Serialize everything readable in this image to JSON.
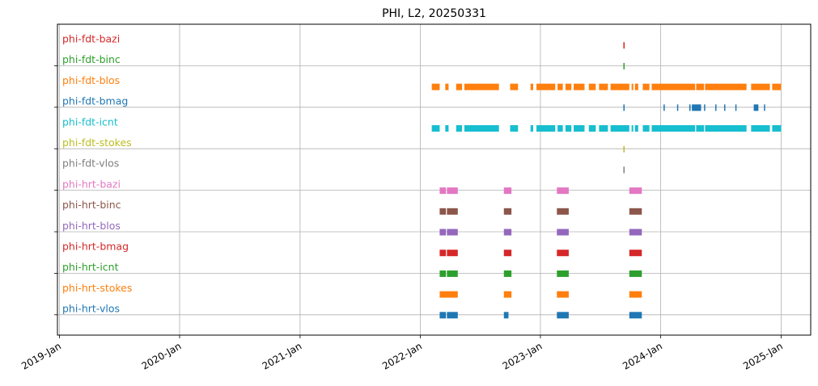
{
  "chart_data": {
    "type": "timeline",
    "title": "PHI, L2, 20250331",
    "x_axis": {
      "scale": "date",
      "range": [
        "2018-12-26",
        "2025-04-01"
      ],
      "ticks": [
        "2019-01-01",
        "2020-01-01",
        "2021-01-01",
        "2022-01-01",
        "2023-01-01",
        "2024-01-01",
        "2025-01-01"
      ],
      "tick_labels": [
        "2019-Jan",
        "2020-Jan",
        "2021-Jan",
        "2022-Jan",
        "2023-Jan",
        "2024-Jan",
        "2025-Jan"
      ],
      "grid": true
    },
    "y_axis": {
      "grid": true,
      "tick_labels": []
    },
    "series": [
      {
        "name": "phi-fdt-bazi",
        "color": "#d62728",
        "intervals": [
          [
            "2023-09-10",
            "2023-09-12"
          ]
        ]
      },
      {
        "name": "phi-fdt-binc",
        "color": "#2ca02c",
        "intervals": [
          [
            "2023-09-10",
            "2023-09-12"
          ]
        ]
      },
      {
        "name": "phi-fdt-blos",
        "color": "#ff7f0e",
        "intervals": [
          [
            "2022-02-05",
            "2022-03-01"
          ],
          [
            "2022-03-18",
            "2022-03-28"
          ],
          [
            "2022-04-20",
            "2022-05-08"
          ],
          [
            "2022-05-15",
            "2022-08-28"
          ],
          [
            "2022-10-01",
            "2022-10-25"
          ],
          [
            "2022-12-02",
            "2022-12-10"
          ],
          [
            "2022-12-20",
            "2023-02-15"
          ],
          [
            "2023-02-22",
            "2023-03-10"
          ],
          [
            "2023-03-18",
            "2023-04-05"
          ],
          [
            "2023-04-12",
            "2023-05-15"
          ],
          [
            "2023-05-28",
            "2023-06-18"
          ],
          [
            "2023-06-28",
            "2023-07-25"
          ],
          [
            "2023-08-02",
            "2023-09-28"
          ],
          [
            "2023-10-05",
            "2023-10-10"
          ],
          [
            "2023-10-15",
            "2023-10-25"
          ],
          [
            "2023-11-08",
            "2023-11-28"
          ],
          [
            "2023-12-05",
            "2024-04-15"
          ],
          [
            "2024-04-18",
            "2024-05-12"
          ],
          [
            "2024-05-15",
            "2024-09-18"
          ],
          [
            "2024-10-02",
            "2024-11-28"
          ],
          [
            "2024-12-05",
            "2025-01-01"
          ]
        ]
      },
      {
        "name": "phi-fdt-bmag",
        "color": "#1f77b4",
        "intervals": [
          [
            "2023-09-10",
            "2023-09-12"
          ],
          [
            "2024-01-10",
            "2024-01-13"
          ],
          [
            "2024-02-20",
            "2024-02-22"
          ],
          [
            "2024-03-28",
            "2024-04-01"
          ],
          [
            "2024-04-05",
            "2024-05-03"
          ],
          [
            "2024-05-12",
            "2024-05-14"
          ],
          [
            "2024-06-15",
            "2024-06-17"
          ],
          [
            "2024-07-12",
            "2024-07-14"
          ],
          [
            "2024-08-15",
            "2024-08-17"
          ],
          [
            "2024-10-10",
            "2024-10-24"
          ],
          [
            "2024-11-10",
            "2024-11-12"
          ]
        ]
      },
      {
        "name": "phi-fdt-icnt",
        "color": "#17becf",
        "intervals": [
          [
            "2022-02-05",
            "2022-03-01"
          ],
          [
            "2022-03-18",
            "2022-03-28"
          ],
          [
            "2022-04-20",
            "2022-05-08"
          ],
          [
            "2022-05-15",
            "2022-08-28"
          ],
          [
            "2022-10-01",
            "2022-10-25"
          ],
          [
            "2022-12-02",
            "2022-12-10"
          ],
          [
            "2022-12-20",
            "2023-02-15"
          ],
          [
            "2023-02-22",
            "2023-03-10"
          ],
          [
            "2023-03-18",
            "2023-04-05"
          ],
          [
            "2023-04-12",
            "2023-05-15"
          ],
          [
            "2023-05-28",
            "2023-06-18"
          ],
          [
            "2023-06-28",
            "2023-07-25"
          ],
          [
            "2023-08-02",
            "2023-09-28"
          ],
          [
            "2023-10-05",
            "2023-10-10"
          ],
          [
            "2023-10-15",
            "2023-10-25"
          ],
          [
            "2023-11-08",
            "2023-11-28"
          ],
          [
            "2023-12-05",
            "2024-04-15"
          ],
          [
            "2024-04-18",
            "2024-05-12"
          ],
          [
            "2024-05-15",
            "2024-09-18"
          ],
          [
            "2024-10-02",
            "2024-11-28"
          ],
          [
            "2024-12-05",
            "2025-01-01"
          ]
        ]
      },
      {
        "name": "phi-fdt-stokes",
        "color": "#bcbd22",
        "intervals": [
          [
            "2023-09-10",
            "2023-09-12"
          ]
        ]
      },
      {
        "name": "phi-fdt-vlos",
        "color": "#7f7f7f",
        "intervals": [
          [
            "2023-09-10",
            "2023-09-12"
          ]
        ]
      },
      {
        "name": "phi-hrt-bazi",
        "color": "#e377c2",
        "intervals": [
          [
            "2022-03-01",
            "2022-03-20"
          ],
          [
            "2022-03-23",
            "2022-04-25"
          ],
          [
            "2022-09-12",
            "2022-10-05"
          ],
          [
            "2023-02-20",
            "2023-03-28"
          ],
          [
            "2023-09-28",
            "2023-11-05"
          ]
        ]
      },
      {
        "name": "phi-hrt-binc",
        "color": "#8c564b",
        "intervals": [
          [
            "2022-03-01",
            "2022-03-20"
          ],
          [
            "2022-03-23",
            "2022-04-25"
          ],
          [
            "2022-09-12",
            "2022-10-05"
          ],
          [
            "2023-02-20",
            "2023-03-28"
          ],
          [
            "2023-09-28",
            "2023-11-05"
          ]
        ]
      },
      {
        "name": "phi-hrt-blos",
        "color": "#9467bd",
        "intervals": [
          [
            "2022-03-01",
            "2022-03-20"
          ],
          [
            "2022-03-23",
            "2022-04-25"
          ],
          [
            "2022-09-12",
            "2022-10-05"
          ],
          [
            "2023-02-20",
            "2023-03-28"
          ],
          [
            "2023-09-28",
            "2023-11-05"
          ]
        ]
      },
      {
        "name": "phi-hrt-bmag",
        "color": "#d62728",
        "intervals": [
          [
            "2022-03-01",
            "2022-03-20"
          ],
          [
            "2022-03-23",
            "2022-04-25"
          ],
          [
            "2022-09-12",
            "2022-10-05"
          ],
          [
            "2023-02-20",
            "2023-03-28"
          ],
          [
            "2023-09-28",
            "2023-11-05"
          ]
        ]
      },
      {
        "name": "phi-hrt-icnt",
        "color": "#2ca02c",
        "intervals": [
          [
            "2022-03-01",
            "2022-03-20"
          ],
          [
            "2022-03-23",
            "2022-04-25"
          ],
          [
            "2022-09-12",
            "2022-10-05"
          ],
          [
            "2023-02-20",
            "2023-03-28"
          ],
          [
            "2023-09-28",
            "2023-11-05"
          ]
        ]
      },
      {
        "name": "phi-hrt-stokes",
        "color": "#ff7f0e",
        "intervals": [
          [
            "2022-03-01",
            "2022-04-25"
          ],
          [
            "2022-09-12",
            "2022-10-05"
          ],
          [
            "2023-02-20",
            "2023-03-28"
          ],
          [
            "2023-09-28",
            "2023-11-05"
          ]
        ]
      },
      {
        "name": "phi-hrt-vlos",
        "color": "#1f77b4",
        "intervals": [
          [
            "2022-03-01",
            "2022-03-20"
          ],
          [
            "2022-03-23",
            "2022-04-25"
          ],
          [
            "2022-09-12",
            "2022-09-26"
          ],
          [
            "2023-02-20",
            "2023-03-28"
          ],
          [
            "2023-09-28",
            "2023-11-05"
          ]
        ]
      }
    ]
  }
}
